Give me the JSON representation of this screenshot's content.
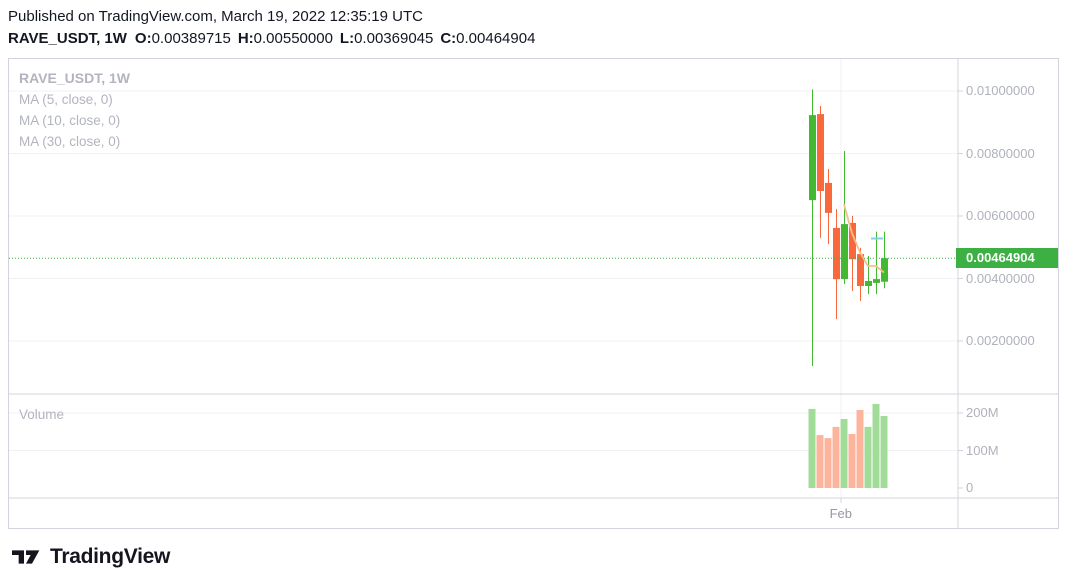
{
  "header": {
    "published_line": "Published on TradingView.com, March 19, 2022 12:35:19 UTC",
    "symbol_title": "RAVE_USDT, 1W",
    "ohlc": {
      "o_label": "O:",
      "o": "0.00389715",
      "h_label": "H:",
      "h": "0.00550000",
      "l_label": "L:",
      "l": "0.00369045",
      "c_label": "C:",
      "c": "0.00464904"
    }
  },
  "legend": {
    "title": "RAVE_USDT, 1W",
    "ma_items": [
      "MA (5, close, 0)",
      "MA (10, close, 0)",
      "MA (30, close, 0)"
    ]
  },
  "volume_label": "Volume",
  "footer": {
    "logo_text": "TradingView"
  },
  "colors": {
    "background": "#FFFFFF",
    "header_text": "#131722",
    "up": "#42B930",
    "down": "#F9683A",
    "volume_up": "#A1DC98",
    "volume_down": "#FCB49C",
    "ma5": "#F6BE8B",
    "ma10": "#7FD0E4",
    "price_line": "#3CB043",
    "price_label_bg": "#3CB043",
    "grid": "#F2F2F6",
    "border": "#D1D4DC",
    "axis_text": "#AFB2BB",
    "legend_text": "#B2B5BE",
    "time_text": "#9598A1",
    "logo_color": "#14151F"
  },
  "chart_data": {
    "type": "candlestick",
    "symbol": "RAVE_USDT",
    "interval": "1W",
    "legend_position": "top-left",
    "grid": true,
    "ylim_price": [
      0.0003,
      0.01102
    ],
    "ylim_volume": [
      0,
      250000000
    ],
    "price_axis_ticks": [
      {
        "label": "0.01000000",
        "value": 0.01
      },
      {
        "label": "0.00800000",
        "value": 0.008
      },
      {
        "label": "0.00600000",
        "value": 0.006
      },
      {
        "label": "0.00400000",
        "value": 0.004
      },
      {
        "label": "0.00200000",
        "value": 0.002
      }
    ],
    "volume_axis_ticks": [
      {
        "label": "200M",
        "value": 200000000
      },
      {
        "label": "100M",
        "value": 100000000
      },
      {
        "label": "0",
        "value": 0
      }
    ],
    "time_axis_labels": [
      {
        "label": "Feb",
        "candle_index": 3.6
      }
    ],
    "last_price": {
      "value": 0.00464904,
      "label": "0.00464904"
    },
    "candles": [
      {
        "open": 0.00651,
        "high": 0.01005,
        "low": 0.0012,
        "close": 0.00923,
        "volume": 211000000
      },
      {
        "open": 0.00926,
        "high": 0.00952,
        "low": 0.0053,
        "close": 0.0068,
        "volume": 141000000
      },
      {
        "open": 0.00706,
        "high": 0.0075,
        "low": 0.0051,
        "close": 0.0061,
        "volume": 133000000
      },
      {
        "open": 0.00562,
        "high": 0.00622,
        "low": 0.0027,
        "close": 0.00398,
        "volume": 163000000
      },
      {
        "open": 0.00398,
        "high": 0.00808,
        "low": 0.00382,
        "close": 0.00574,
        "volume": 184000000
      },
      {
        "open": 0.00578,
        "high": 0.006,
        "low": 0.0036,
        "close": 0.00462,
        "volume": 144000000
      },
      {
        "open": 0.00478,
        "high": 0.00498,
        "low": 0.00328,
        "close": 0.00376,
        "volume": 208000000
      },
      {
        "open": 0.00376,
        "high": 0.00472,
        "low": 0.0035,
        "close": 0.00392,
        "volume": 163000000
      },
      {
        "open": 0.00386,
        "high": 0.0055,
        "low": 0.0035,
        "close": 0.00398,
        "volume": 224000000
      },
      {
        "open": 0.00389715,
        "high": 0.0055,
        "low": 0.00369045,
        "close": 0.00464904,
        "volume": 192000000
      }
    ],
    "ma5": [
      null,
      null,
      null,
      null,
      0.00637,
      0.00545,
      0.00484,
      0.0044,
      0.0044,
      0.00419
    ],
    "ma10": [
      null,
      null,
      null,
      null,
      null,
      null,
      null,
      null,
      null,
      0.00528
    ]
  }
}
